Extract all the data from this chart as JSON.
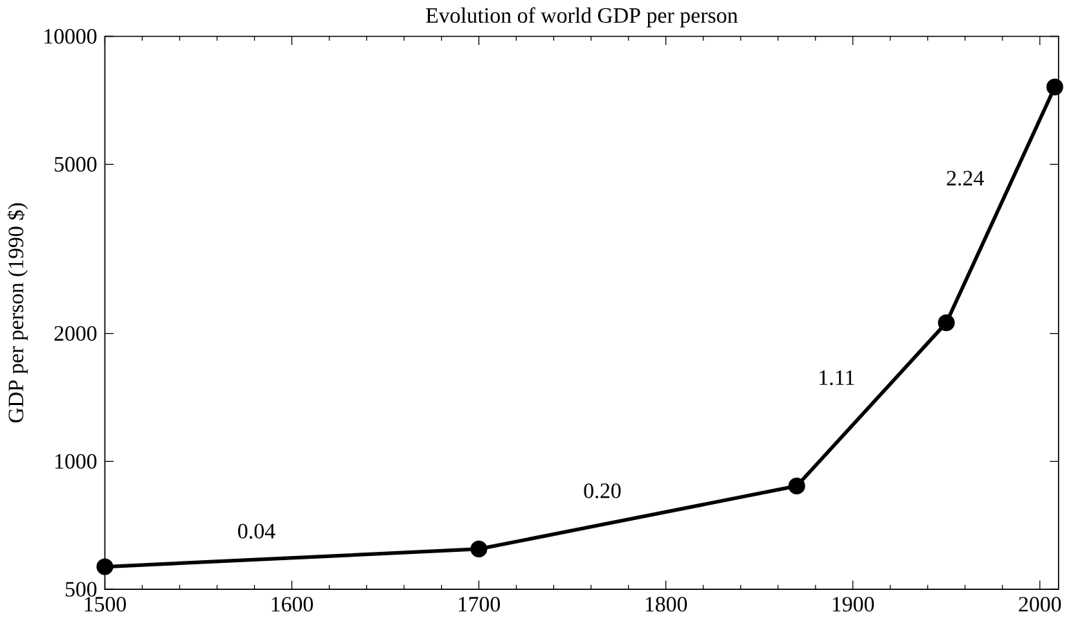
{
  "chart_data": {
    "type": "line",
    "title": "Evolution of world GDP per person",
    "ylabel": "GDP per person (1990 $)",
    "x": [
      1500,
      1700,
      1870,
      1950,
      2008
    ],
    "values": [
      565,
      622,
      875,
      2119,
      7600
    ],
    "color": "#000000",
    "marker": "circle",
    "line_style": "solid",
    "log": "y",
    "grid": false,
    "xlim": [
      1500,
      2010
    ],
    "xticks": [
      1500,
      1600,
      1700,
      1800,
      1900,
      2000
    ],
    "ylim": [
      500,
      10000
    ],
    "yticks": [
      500,
      1000,
      2000,
      5000,
      10000
    ],
    "annotations": [
      "0.04",
      "0.20",
      "1.11",
      "2.24"
    ]
  }
}
